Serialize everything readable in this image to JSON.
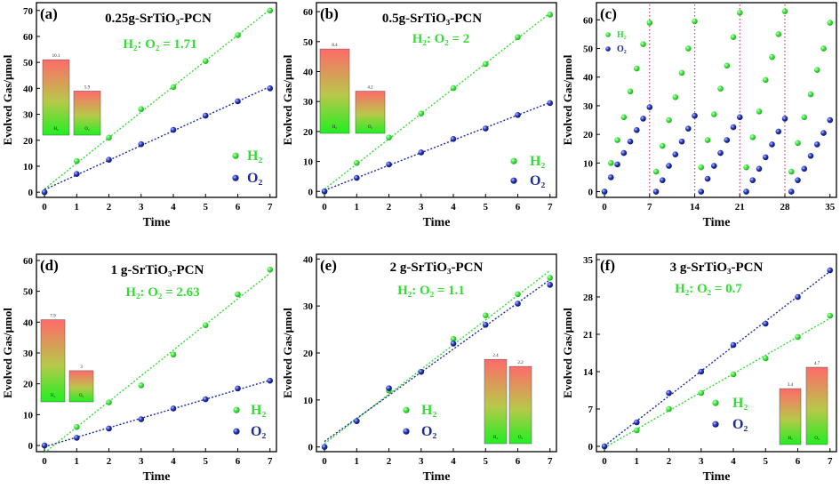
{
  "colors": {
    "h2": "#33dd33",
    "o2": "#1a2aa0",
    "axis": "#000000",
    "divider": "#d04060"
  },
  "labels": {
    "x_axis": "Time",
    "y_axis": "Evolved Gas/μmol",
    "h2_legend": "H₂",
    "o2_legend": "O₂"
  },
  "chart_data": [
    {
      "type": "scatter",
      "panel": "(a)",
      "title": "0.25g-SrTiO₃-PCN",
      "ratio": "H₂:  O₂ = 1.71",
      "xlabel": "Time",
      "ylabel": "Evolved Gas/μmol",
      "xlim": [
        0,
        7
      ],
      "ylim": [
        0,
        70
      ],
      "xticks": [
        0,
        1,
        2,
        3,
        4,
        5,
        6,
        7
      ],
      "yticks": [
        0,
        10,
        20,
        30,
        40,
        50,
        60,
        70
      ],
      "series": [
        {
          "name": "H₂",
          "x": [
            0,
            1,
            2,
            3,
            4,
            5,
            6,
            7
          ],
          "y": [
            0,
            12,
            21,
            32,
            40.5,
            50.5,
            60.5,
            70
          ]
        },
        {
          "name": "O₂",
          "x": [
            0,
            1,
            2,
            3,
            4,
            5,
            6,
            7
          ],
          "y": [
            0,
            7,
            12.5,
            18.5,
            24,
            29.5,
            35,
            40
          ]
        }
      ],
      "inset": {
        "bars": [
          {
            "label": "H₂",
            "value_label": "10.1",
            "value": 10.1
          },
          {
            "label": "O₂",
            "value_label": "5.9",
            "value": 5.9
          }
        ]
      },
      "legend": "bottom-right"
    },
    {
      "type": "scatter",
      "panel": "(b)",
      "title": "0.5g-SrTiO₃-PCN",
      "ratio": "H₂:  O₂ = 2",
      "xlabel": "Time",
      "ylabel": "Evolved Gas/μmol",
      "xlim": [
        0,
        7
      ],
      "ylim": [
        0,
        60
      ],
      "xticks": [
        0,
        1,
        2,
        3,
        4,
        5,
        6,
        7
      ],
      "yticks": [
        0,
        10,
        20,
        30,
        40,
        50,
        60
      ],
      "series": [
        {
          "name": "H₂",
          "x": [
            0,
            1,
            2,
            3,
            4,
            5,
            6,
            7
          ],
          "y": [
            0,
            9.5,
            18,
            26,
            34.5,
            42.5,
            51.5,
            59
          ]
        },
        {
          "name": "O₂",
          "x": [
            0,
            1,
            2,
            3,
            4,
            5,
            6,
            7
          ],
          "y": [
            0,
            4.5,
            9,
            13,
            17.5,
            21,
            25.5,
            29.5
          ]
        }
      ],
      "inset": {
        "bars": [
          {
            "label": "H₂",
            "value_label": "8.4",
            "value": 8.4
          },
          {
            "label": "O₂",
            "value_label": "4.2",
            "value": 4.2
          }
        ]
      },
      "legend": "bottom-right"
    },
    {
      "type": "scatter",
      "panel": "(c)",
      "title": "",
      "xlabel": "Time",
      "ylabel": "Evolved Gas/μmol",
      "xlim": [
        0,
        35
      ],
      "ylim": [
        0,
        65
      ],
      "xticks": [
        0,
        7,
        14,
        21,
        28,
        35
      ],
      "yticks": [
        0,
        10,
        20,
        30,
        40,
        50,
        60
      ],
      "cycle_dividers": [
        7,
        14,
        21,
        28
      ],
      "series": [
        {
          "name": "H₂",
          "x": [
            0,
            1,
            2,
            3,
            4,
            5,
            6,
            7,
            8,
            9,
            10,
            11,
            12,
            13,
            14,
            15,
            16,
            17,
            18,
            19,
            20,
            21,
            22,
            23,
            24,
            25,
            26,
            27,
            28,
            29,
            30,
            31,
            32,
            33,
            34,
            35
          ],
          "y": [
            0,
            10,
            18,
            26,
            35,
            43,
            51.5,
            59,
            7,
            16,
            25,
            33,
            41.5,
            50,
            59.5,
            8.5,
            18,
            27,
            36,
            44,
            54,
            62.5,
            8.5,
            19,
            28,
            39,
            47,
            55,
            63,
            7,
            17,
            26,
            34,
            42.5,
            50,
            59
          ]
        },
        {
          "name": "O₂",
          "x": [
            0,
            1,
            2,
            3,
            4,
            5,
            6,
            7,
            8,
            9,
            10,
            11,
            12,
            13,
            14,
            15,
            16,
            17,
            18,
            19,
            20,
            21,
            22,
            23,
            24,
            25,
            26,
            27,
            28,
            29,
            30,
            31,
            32,
            33,
            34,
            35
          ],
          "y": [
            0,
            5,
            9.5,
            13.5,
            17.5,
            21.5,
            25.5,
            29.5,
            0,
            4,
            9,
            13,
            17.5,
            22,
            26.5,
            0,
            4.5,
            9,
            13.5,
            18,
            22.5,
            26,
            0,
            4,
            8,
            12,
            16.5,
            21,
            25.5,
            0,
            4,
            8,
            12.5,
            16.5,
            20.5,
            25
          ]
        }
      ],
      "legend": "top-left"
    },
    {
      "type": "scatter",
      "panel": "(d)",
      "title": "1 g-SrTiO₃-PCN",
      "ratio": "H₂:  O₂ = 2.63",
      "xlabel": "Time",
      "ylabel": "Evolved Gas/μmol",
      "xlim": [
        0,
        7
      ],
      "ylim": [
        0,
        60
      ],
      "xticks": [
        0,
        1,
        2,
        3,
        4,
        5,
        6,
        7
      ],
      "yticks": [
        0,
        10,
        20,
        30,
        40,
        50,
        60
      ],
      "series": [
        {
          "name": "H₂",
          "x": [
            0,
            1,
            2,
            3,
            4,
            5,
            6,
            7
          ],
          "y": [
            0,
            6,
            14,
            19.5,
            29.5,
            39,
            49,
            57
          ]
        },
        {
          "name": "O₂",
          "x": [
            0,
            1,
            2,
            3,
            4,
            5,
            6,
            7
          ],
          "y": [
            0,
            2.5,
            5.5,
            8.5,
            12,
            15,
            18.5,
            21
          ]
        }
      ],
      "inset": {
        "bars": [
          {
            "label": "H₂",
            "value_label": "7.9",
            "value": 7.9
          },
          {
            "label": "O₂",
            "value_label": "3",
            "value": 3
          }
        ]
      },
      "legend": "bottom-right"
    },
    {
      "type": "scatter",
      "panel": "(e)",
      "title": "2 g-SrTiO₃-PCN",
      "ratio": "H₂:  O₂ = 1.1",
      "xlabel": "Time",
      "ylabel": "Evolved Gas/μmol",
      "xlim": [
        0,
        7
      ],
      "ylim": [
        0,
        40
      ],
      "xticks": [
        0,
        1,
        2,
        3,
        4,
        5,
        6,
        7
      ],
      "yticks": [
        0,
        10,
        20,
        30,
        40
      ],
      "series": [
        {
          "name": "H₂",
          "x": [
            0,
            1,
            2,
            3,
            4,
            5,
            6,
            7
          ],
          "y": [
            0,
            5.5,
            12,
            16,
            23,
            28,
            32.5,
            36
          ]
        },
        {
          "name": "O₂",
          "x": [
            0,
            1,
            2,
            3,
            4,
            5,
            6,
            7
          ],
          "y": [
            0,
            5.5,
            12.5,
            16,
            22,
            26,
            30.5,
            34.5
          ]
        }
      ],
      "inset": {
        "bars": [
          {
            "label": "H₂",
            "value_label": "2.4",
            "value": 2.4
          },
          {
            "label": "O₂",
            "value_label": "2.2",
            "value": 2.2
          }
        ]
      },
      "legend": "bottom-center"
    },
    {
      "type": "scatter",
      "panel": "(f)",
      "title": "3 g-SrTiO₃-PCN",
      "ratio": "H₂:  O₂ = 0.7",
      "xlabel": "Time",
      "ylabel": "Evolved Gas/μmol",
      "xlim": [
        0,
        7
      ],
      "ylim": [
        0,
        35
      ],
      "xticks": [
        0,
        1,
        2,
        3,
        4,
        5,
        6,
        7
      ],
      "yticks": [
        0,
        7,
        14,
        21,
        28,
        35
      ],
      "series": [
        {
          "name": "H₂",
          "x": [
            0,
            1,
            2,
            3,
            4,
            5,
            6,
            7
          ],
          "y": [
            0,
            3,
            7,
            10,
            13.5,
            16.5,
            20.5,
            24.5
          ]
        },
        {
          "name": "O₂",
          "x": [
            0,
            1,
            2,
            3,
            4,
            5,
            6,
            7
          ],
          "y": [
            0,
            4.5,
            10,
            14,
            19,
            23,
            28,
            33
          ]
        }
      ],
      "inset": {
        "bars": [
          {
            "label": "H₂",
            "value_label": "3.4",
            "value": 3.4
          },
          {
            "label": "O₂",
            "value_label": "4.7",
            "value": 4.7
          }
        ]
      },
      "legend": "bottom-center"
    }
  ]
}
